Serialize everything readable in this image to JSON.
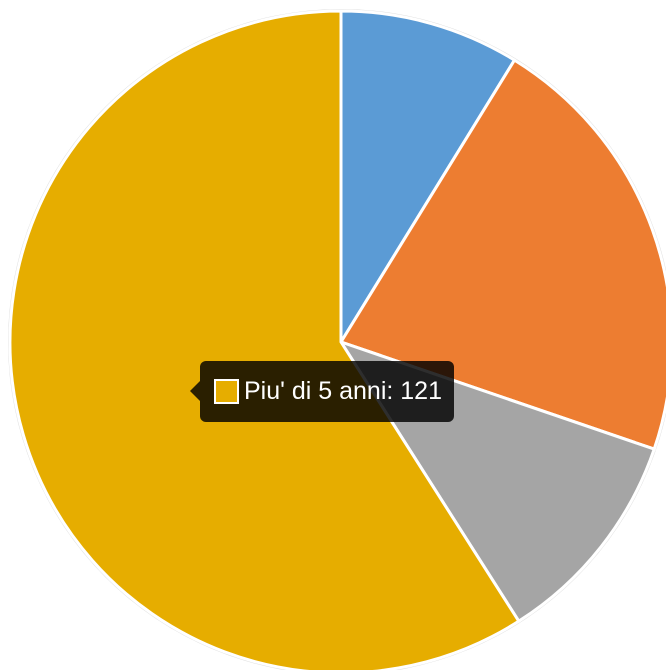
{
  "chart_data": {
    "type": "pie",
    "categories": [
      "",
      "",
      "",
      "Piu' di 5 anni"
    ],
    "values": [
      18,
      44,
      22,
      121
    ],
    "colors": [
      "#5b9bd5",
      "#ed7d31",
      "#a5a5a5",
      "#e6ad00"
    ],
    "border_color": "#e0e0e0",
    "legend": "none"
  },
  "tooltip": {
    "label": "Piu' di 5 anni",
    "value": "121",
    "text": "Piu' di 5 anni: 121",
    "swatch_color": "#e6ad00"
  }
}
